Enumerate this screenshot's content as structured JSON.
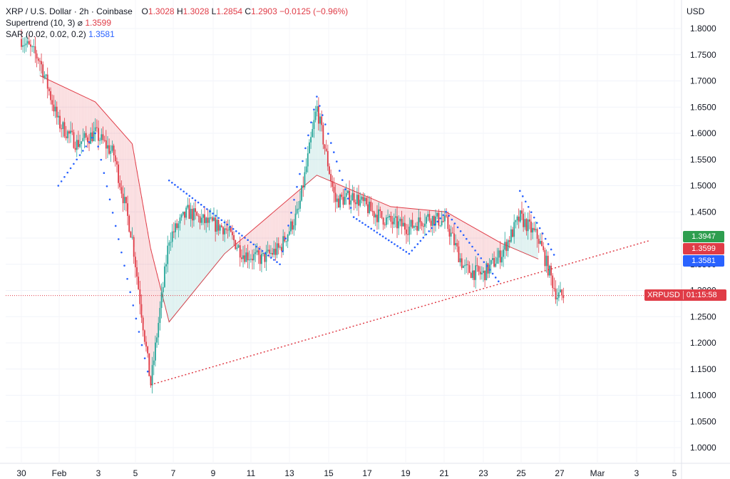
{
  "legend": {
    "title": "XRP / U.S. Dollar · 2h · Coinbase",
    "o_label": "O",
    "o": "1.3028",
    "h_label": "H",
    "h": "1.3028",
    "l_label": "L",
    "l": "1.2854",
    "c_label": "C",
    "c": "1.2903",
    "change": "−0.0125 (−0.96%)",
    "supertrend_label": "Supertrend (10, 3)",
    "supertrend_symbol": "⌀",
    "supertrend_value": "1.3599",
    "sar_label": "SAR (0.02, 0.02, 0.2)",
    "sar_value": "1.3581"
  },
  "currency": "USD",
  "badges": {
    "green": "1.3947",
    "red": "1.3599",
    "blue": "1.3581",
    "symbol": "XRPUSD",
    "countdown": "01:15:58"
  },
  "colors": {
    "up": "#26a69a",
    "down": "#e03c47",
    "sar": "#2962ff",
    "green_badge": "#2e9e4f",
    "red_badge": "#e03c47",
    "blue_badge": "#2962ff"
  },
  "chart_data": {
    "type": "candlestick",
    "title": "XRP / U.S. Dollar · 2h · Coinbase",
    "y_ticks": [
      "1.8000",
      "1.7500",
      "1.7000",
      "1.6500",
      "1.6000",
      "1.5500",
      "1.5000",
      "1.4500",
      "1.4000",
      "1.3500",
      "1.3000",
      "1.2500",
      "1.2000",
      "1.1500",
      "1.1000",
      "1.0500",
      "1.0000"
    ],
    "x_ticks": [
      "30",
      "Feb",
      "3",
      "5",
      "7",
      "9",
      "11",
      "13",
      "15",
      "17",
      "19",
      "21",
      "23",
      "25",
      "27",
      "Mar",
      "3",
      "5"
    ],
    "ylim": [
      0.97,
      1.82
    ],
    "last_price": 1.2903,
    "trendline": {
      "from": [
        "2025-02-06",
        1.12
      ],
      "to": [
        "2025-03-05",
        1.395
      ]
    },
    "price_path": [
      [
        "2025-01-30",
        1.78
      ],
      [
        "2025-01-31",
        1.74
      ],
      [
        "2025-02-01",
        1.62
      ],
      [
        "2025-02-02",
        1.58
      ],
      [
        "2025-02-03",
        1.6
      ],
      [
        "2025-02-04",
        1.56
      ],
      [
        "2025-02-05",
        1.4
      ],
      [
        "2025-02-06",
        1.12
      ],
      [
        "2025-02-07",
        1.4
      ],
      [
        "2025-02-08",
        1.45
      ],
      [
        "2025-02-09",
        1.43
      ],
      [
        "2025-02-10",
        1.42
      ],
      [
        "2025-02-11",
        1.37
      ],
      [
        "2025-02-12",
        1.36
      ],
      [
        "2025-02-13",
        1.38
      ],
      [
        "2025-02-14",
        1.45
      ],
      [
        "2025-02-15",
        1.65
      ],
      [
        "2025-02-16",
        1.47
      ],
      [
        "2025-02-17",
        1.48
      ],
      [
        "2025-02-18",
        1.45
      ],
      [
        "2025-02-19",
        1.43
      ],
      [
        "2025-02-20",
        1.42
      ],
      [
        "2025-02-21",
        1.44
      ],
      [
        "2025-02-22",
        1.43
      ],
      [
        "2025-02-23",
        1.34
      ],
      [
        "2025-02-24",
        1.33
      ],
      [
        "2025-02-25",
        1.37
      ],
      [
        "2025-02-26",
        1.44
      ],
      [
        "2025-02-27",
        1.4
      ],
      [
        "2025-02-28",
        1.29
      ]
    ],
    "supertrend": [
      [
        "2025-01-31",
        1.71
      ],
      [
        "2025-02-03",
        1.66
      ],
      [
        "2025-02-05",
        1.58
      ],
      [
        "2025-02-06",
        1.38
      ],
      [
        "2025-02-07",
        1.24
      ],
      [
        "2025-02-10",
        1.37
      ],
      [
        "2025-02-12",
        1.43
      ],
      [
        "2025-02-15",
        1.52
      ],
      [
        "2025-02-19",
        1.46
      ],
      [
        "2025-02-22",
        1.45
      ],
      [
        "2025-02-25",
        1.39
      ],
      [
        "2025-02-27",
        1.36
      ]
    ],
    "sar": [
      [
        "2025-02-01",
        1.5
      ],
      [
        "2025-02-02",
        1.55
      ],
      [
        "2025-02-03",
        1.6
      ],
      [
        "2025-02-06",
        1.12
      ],
      [
        "2025-02-07",
        1.51
      ],
      [
        "2025-02-10",
        1.43
      ],
      [
        "2025-02-13",
        1.35
      ],
      [
        "2025-02-15",
        1.67
      ],
      [
        "2025-02-17",
        1.44
      ],
      [
        "2025-02-20",
        1.37
      ],
      [
        "2025-02-22",
        1.45
      ],
      [
        "2025-02-25",
        1.31
      ],
      [
        "2025-02-26",
        1.49
      ],
      [
        "2025-02-28",
        1.358
      ]
    ]
  }
}
